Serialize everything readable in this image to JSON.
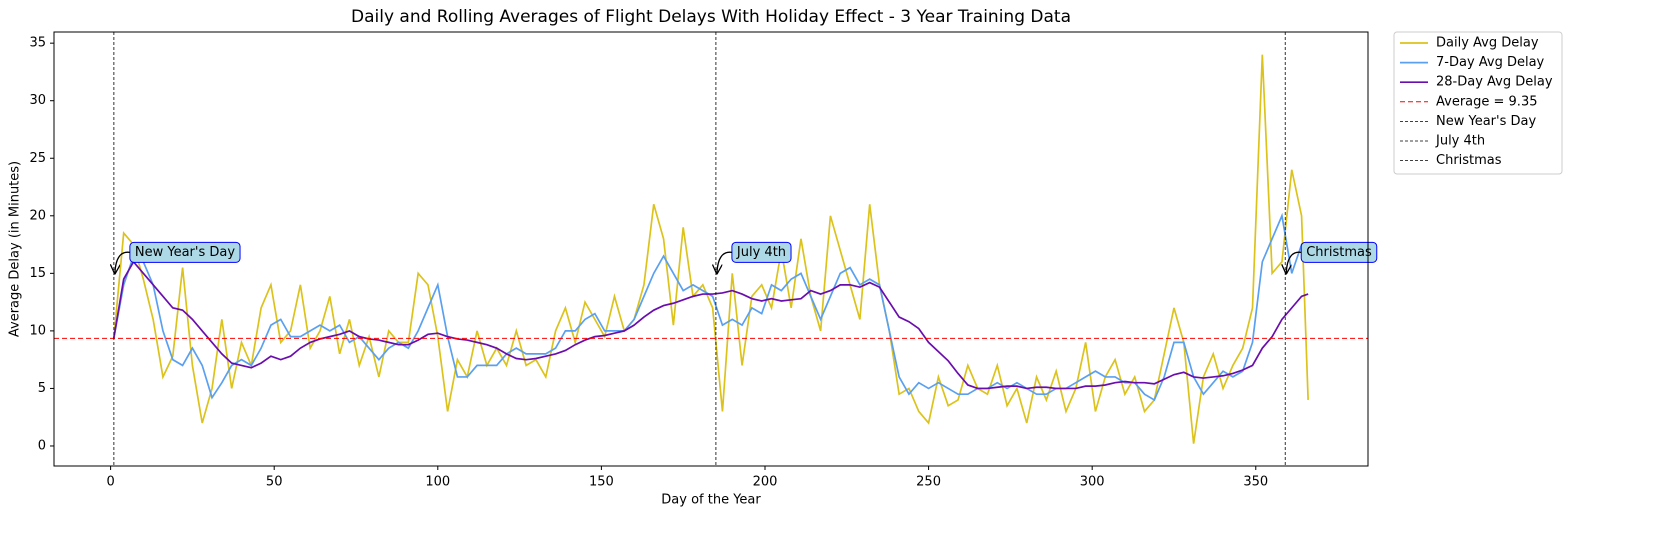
{
  "chart_data": {
    "type": "line",
    "title": "Daily and Rolling Averages of Flight Delays With Holiday Effect - 3 Year Training Data",
    "x_label": "Day of the Year",
    "y_label": "Average Delay (in Minutes)",
    "x": [
      1,
      4,
      7,
      10,
      13,
      16,
      19,
      22,
      25,
      28,
      31,
      34,
      37,
      40,
      43,
      46,
      49,
      52,
      55,
      58,
      61,
      64,
      67,
      70,
      73,
      76,
      79,
      82,
      85,
      88,
      91,
      94,
      97,
      100,
      103,
      106,
      109,
      112,
      115,
      118,
      121,
      124,
      127,
      130,
      133,
      136,
      139,
      142,
      145,
      148,
      151,
      154,
      157,
      160,
      163,
      166,
      169,
      172,
      175,
      178,
      181,
      184,
      187,
      190,
      193,
      196,
      199,
      202,
      205,
      208,
      211,
      214,
      217,
      220,
      223,
      226,
      229,
      232,
      235,
      238,
      241,
      244,
      247,
      250,
      253,
      256,
      259,
      262,
      265,
      268,
      271,
      274,
      277,
      280,
      283,
      286,
      289,
      292,
      295,
      298,
      301,
      304,
      307,
      310,
      313,
      316,
      319,
      322,
      325,
      328,
      331,
      334,
      337,
      340,
      343,
      346,
      349,
      352,
      355,
      358,
      361,
      364,
      366
    ],
    "series": [
      {
        "name": "Daily Avg Delay",
        "color": "#dcc31c",
        "values": [
          9.4,
          18.5,
          17.5,
          14.5,
          11,
          6,
          7.8,
          15.5,
          7,
          2,
          5,
          11,
          5,
          9,
          7,
          12,
          14,
          9,
          10,
          14,
          8.5,
          10,
          13,
          8,
          11,
          7,
          9.5,
          6,
          10,
          9,
          9,
          15,
          14,
          9.5,
          3,
          7.5,
          6,
          10,
          7,
          8.5,
          7,
          10,
          7,
          7.5,
          6,
          10,
          12,
          9,
          12.5,
          11,
          9.5,
          13,
          10,
          11,
          14,
          21,
          18,
          10.5,
          19,
          13,
          14,
          12,
          3,
          15,
          7,
          13,
          14,
          12,
          17,
          12,
          18,
          13,
          10,
          20,
          17,
          14,
          11,
          21,
          14,
          10,
          4.5,
          5,
          3,
          2,
          6,
          3.5,
          4,
          7,
          5,
          4.5,
          7,
          3.5,
          5,
          2,
          6,
          4,
          6.5,
          3,
          5,
          9,
          3,
          6,
          7.5,
          4.5,
          6,
          3,
          4,
          8,
          12,
          9,
          0.2,
          6,
          8,
          5,
          7,
          8.5,
          12,
          34,
          15,
          16,
          24,
          20,
          4
        ]
      },
      {
        "name": "7-Day Avg Delay",
        "color": "#5aa0f0",
        "values": [
          9.4,
          14,
          16.5,
          16,
          14,
          10,
          7.5,
          7,
          8.5,
          7,
          4.2,
          5.5,
          7,
          7.5,
          7,
          8.5,
          10.5,
          11,
          9.5,
          9.5,
          10,
          10.5,
          10,
          10.5,
          9,
          9.5,
          8.5,
          7.5,
          8.5,
          9,
          8.5,
          10,
          12,
          14,
          9.5,
          6,
          6,
          7,
          7,
          7,
          8,
          8.5,
          8,
          8,
          8,
          8.5,
          10,
          10,
          11,
          11.5,
          10,
          10,
          10,
          11,
          13,
          15,
          16.5,
          15,
          13.5,
          14,
          13.5,
          13,
          10.5,
          11,
          10.5,
          12,
          11.5,
          14,
          13.5,
          14.5,
          15,
          13,
          11,
          13,
          15,
          15.5,
          14,
          14.5,
          14,
          10,
          6,
          4.5,
          5.5,
          5,
          5.5,
          5,
          4.5,
          4.5,
          5,
          5,
          5.5,
          5,
          5.5,
          5,
          4.5,
          4.5,
          5,
          5,
          5.5,
          6,
          6.5,
          6,
          6,
          5.5,
          5.5,
          4.5,
          4,
          6,
          9,
          9,
          6,
          4.5,
          5.5,
          6.5,
          6,
          6.5,
          9,
          16,
          18,
          20,
          15,
          17.5,
          17
        ]
      },
      {
        "name": "28-Day Avg Delay",
        "color": "#6a0dad",
        "values": [
          9.4,
          14.5,
          16,
          15,
          14,
          13,
          12,
          11.8,
          11,
          10,
          9,
          8,
          7.2,
          7,
          6.8,
          7.2,
          7.8,
          7.5,
          7.8,
          8.5,
          9,
          9.3,
          9.5,
          9.7,
          10,
          9.5,
          9.3,
          9.2,
          9,
          8.8,
          8.8,
          9.2,
          9.7,
          9.8,
          9.5,
          9.3,
          9.2,
          9,
          8.8,
          8.5,
          8,
          7.6,
          7.5,
          7.6,
          7.8,
          8,
          8.3,
          8.8,
          9.2,
          9.5,
          9.6,
          9.8,
          10,
          10.5,
          11.2,
          11.8,
          12.2,
          12.4,
          12.7,
          13,
          13.2,
          13.2,
          13.3,
          13.5,
          13.2,
          12.8,
          12.6,
          12.8,
          12.6,
          12.7,
          12.8,
          13.5,
          13.2,
          13.5,
          14,
          14,
          13.8,
          14.2,
          13.8,
          12.5,
          11.2,
          10.8,
          10.2,
          9,
          8.2,
          7.4,
          6.3,
          5.3,
          5,
          5,
          5.1,
          5.2,
          5.2,
          5,
          5.1,
          5.1,
          5,
          5,
          5,
          5.2,
          5.2,
          5.3,
          5.5,
          5.6,
          5.5,
          5.5,
          5.4,
          5.8,
          6.2,
          6.4,
          6,
          5.9,
          6,
          6.1,
          6.3,
          6.6,
          7,
          8.5,
          9.5,
          11,
          12,
          13,
          13.2
        ]
      }
    ],
    "hline": {
      "label": "Average = 9.35",
      "value": 9.35,
      "color": "#ff0000"
    },
    "vlines": [
      {
        "name": "New Year's Day",
        "x": 1
      },
      {
        "name": "July 4th",
        "x": 185
      },
      {
        "name": "Christmas",
        "x": 359
      }
    ],
    "annotations": [
      {
        "text": "New Year's Day",
        "x": 1,
        "y": 15
      },
      {
        "text": "July 4th",
        "x": 185,
        "y": 15
      },
      {
        "text": "Christmas",
        "x": 359,
        "y": 15
      }
    ],
    "xlim": [
      -17.3,
      384.3
    ],
    "xticks": [
      0,
      50,
      100,
      150,
      200,
      250,
      300,
      350
    ],
    "ylim": [
      -1.74,
      35.97
    ],
    "yticks": [
      0,
      5,
      10,
      15,
      20,
      25,
      30,
      35
    ],
    "grid": false,
    "legend": "outside upper right"
  }
}
